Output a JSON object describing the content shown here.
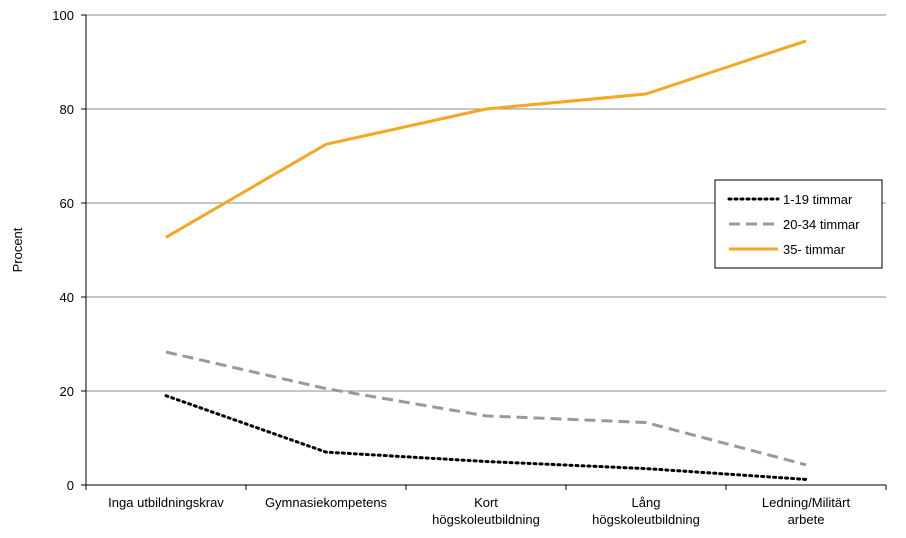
{
  "chart_data": {
    "type": "line",
    "title": "",
    "xlabel": "",
    "ylabel": "Procent",
    "ylim": [
      0,
      100
    ],
    "yticks": [
      0,
      20,
      40,
      60,
      80,
      100
    ],
    "grid": true,
    "legend_position": "right",
    "categories": [
      [
        "Inga utbildningskrav"
      ],
      [
        "Gymnasiekompetens"
      ],
      [
        "Kort",
        "högskoleutbildning"
      ],
      [
        "Lång",
        "högskoleutbildning"
      ],
      [
        "Ledning/Militärt",
        "arbete"
      ]
    ],
    "series": [
      {
        "name": "1-19 timmar",
        "values": [
          19,
          7,
          5,
          3.5,
          1.2
        ],
        "color": "#000000",
        "style": "dotted"
      },
      {
        "name": "20-34 timmar",
        "values": [
          28.3,
          20.5,
          14.7,
          13.3,
          4.3
        ],
        "color": "#999999",
        "style": "dashed"
      },
      {
        "name": "35- timmar",
        "values": [
          52.7,
          72.5,
          80,
          83.2,
          94.5
        ],
        "color": "#F5A623",
        "style": "solid"
      }
    ]
  }
}
